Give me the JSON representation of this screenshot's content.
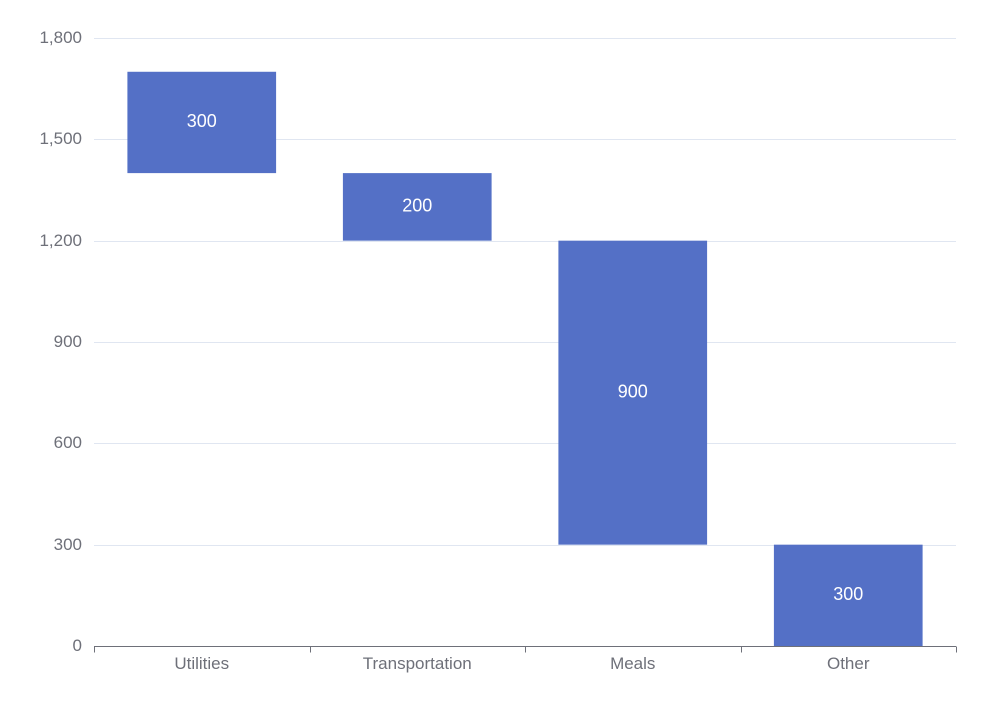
{
  "chart_data": {
    "type": "bar",
    "variant": "waterfall",
    "title": "",
    "xlabel": "",
    "ylabel": "",
    "categories": [
      "Utilities",
      "Transportation",
      "Meals",
      "Other"
    ],
    "values": [
      300,
      200,
      900,
      300
    ],
    "bases": [
      1400,
      1200,
      300,
      0
    ],
    "value_labels": [
      "300",
      "200",
      "900",
      "300"
    ],
    "ylim": [
      0,
      1800
    ],
    "yticks": [
      0,
      300,
      600,
      900,
      1200,
      1500,
      1800
    ],
    "ytick_labels": [
      "0",
      "300",
      "600",
      "900",
      "1,200",
      "1,500",
      "1,800"
    ],
    "grid": true,
    "legend": "none",
    "colors": {
      "bar": "#5470c6",
      "grid": "#e0e6f1",
      "axis": "#6e7079",
      "label": "#ffffff"
    }
  }
}
